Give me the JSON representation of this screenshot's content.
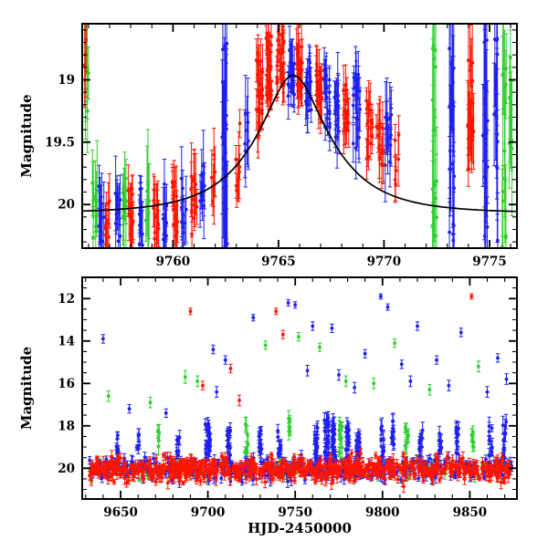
{
  "colors": {
    "red": "#ff1400",
    "green": "#2fce2f",
    "blue": "#1f1ff0",
    "curve": "#000000",
    "axis": "#000000",
    "background": "#ffffff"
  },
  "chart_data": [
    {
      "type": "scatter",
      "panel": "top",
      "title": "",
      "xlabel": "",
      "ylabel": "Magnitude",
      "xlim": [
        9755.7,
        9776.3
      ],
      "ylim": [
        18.55,
        20.35
      ],
      "y_axis_inverted_magnitude": true,
      "xticks": [
        9760,
        9765,
        9770,
        9775
      ],
      "xtick_minor_step": 1,
      "yticks": [
        19,
        19.5,
        20
      ],
      "ytick_minor_step": 0.1,
      "legend": "none",
      "grid": false,
      "model_curve": {
        "name": "microlensing-fit",
        "t0": 9765.7,
        "u0": 0.38,
        "tE": 3.3,
        "baseline_mag": 20.07,
        "peak_mag": 18.96
      },
      "clusters": [
        [
          9755.85,
          0.15,
          "red",
          3,
          18.6,
          19.05,
          0.25
        ],
        [
          9755.95,
          0.2,
          "green",
          6,
          18.7,
          19.5,
          0.3
        ],
        [
          9756.3,
          0.25,
          "green",
          10,
          19.8,
          20.35,
          0.25
        ],
        [
          9756.6,
          0.25,
          "blue",
          12,
          19.85,
          20.3,
          0.2
        ],
        [
          9756.9,
          0.2,
          "red",
          10,
          19.9,
          20.3,
          0.18
        ],
        [
          9757.4,
          0.25,
          "blue",
          12,
          19.8,
          20.3,
          0.2
        ],
        [
          9757.7,
          0.2,
          "green",
          8,
          19.75,
          20.25,
          0.28
        ],
        [
          9758.0,
          0.25,
          "red",
          12,
          19.85,
          20.3,
          0.18
        ],
        [
          9758.5,
          0.25,
          "blue",
          12,
          19.8,
          20.35,
          0.2
        ],
        [
          9758.8,
          0.2,
          "green",
          6,
          19.8,
          20.2,
          0.3
        ],
        [
          9759.2,
          0.25,
          "red",
          12,
          19.85,
          20.3,
          0.18
        ],
        [
          9759.6,
          0.25,
          "blue",
          10,
          19.8,
          20.3,
          0.2
        ],
        [
          9760.1,
          0.3,
          "red",
          14,
          19.8,
          20.3,
          0.18
        ],
        [
          9760.5,
          0.25,
          "blue",
          10,
          19.75,
          20.25,
          0.2
        ],
        [
          9761.0,
          0.3,
          "red",
          12,
          19.7,
          20.25,
          0.18
        ],
        [
          9761.4,
          0.25,
          "blue",
          10,
          19.65,
          20.2,
          0.2
        ],
        [
          9761.9,
          0.2,
          "red",
          8,
          19.6,
          20.1,
          0.18
        ],
        [
          9762.45,
          0.25,
          "blue",
          22,
          18.6,
          20.35,
          0.45
        ],
        [
          9763.1,
          0.25,
          "red",
          8,
          19.35,
          19.9,
          0.2
        ],
        [
          9763.5,
          0.2,
          "blue",
          6,
          19.2,
          19.7,
          0.25
        ],
        [
          9764.1,
          0.3,
          "red",
          25,
          18.75,
          19.5,
          0.15
        ],
        [
          9764.55,
          0.3,
          "red",
          30,
          18.6,
          19.15,
          0.12
        ],
        [
          9765.1,
          0.35,
          "red",
          30,
          18.6,
          19.05,
          0.12
        ],
        [
          9765.6,
          0.3,
          "blue",
          18,
          18.75,
          19.15,
          0.15
        ],
        [
          9766.0,
          0.3,
          "red",
          22,
          18.7,
          19.1,
          0.13
        ],
        [
          9766.45,
          0.3,
          "blue",
          20,
          18.8,
          19.25,
          0.15
        ],
        [
          9766.9,
          0.3,
          "red",
          18,
          18.85,
          19.25,
          0.14
        ],
        [
          9767.3,
          0.3,
          "blue",
          18,
          18.9,
          19.4,
          0.16
        ],
        [
          9767.8,
          0.3,
          "blue",
          16,
          19.0,
          19.5,
          0.18
        ],
        [
          9768.2,
          0.3,
          "red",
          14,
          19.0,
          19.45,
          0.15
        ],
        [
          9768.7,
          0.35,
          "blue",
          18,
          18.95,
          19.55,
          0.18
        ],
        [
          9769.3,
          0.3,
          "red",
          16,
          19.15,
          19.65,
          0.15
        ],
        [
          9769.8,
          0.35,
          "red",
          16,
          19.3,
          19.8,
          0.16
        ],
        [
          9770.2,
          0.3,
          "blue",
          14,
          19.2,
          19.8,
          0.2
        ],
        [
          9770.6,
          0.2,
          "red",
          6,
          19.4,
          19.85,
          0.18
        ],
        [
          9772.4,
          0.2,
          "green",
          16,
          18.6,
          20.35,
          0.5
        ],
        [
          9773.2,
          0.25,
          "blue",
          20,
          18.6,
          20.35,
          0.5
        ],
        [
          9774.1,
          0.3,
          "red",
          20,
          18.8,
          19.7,
          0.25
        ],
        [
          9774.8,
          0.25,
          "blue",
          18,
          18.6,
          20.35,
          0.45
        ],
        [
          9775.3,
          0.2,
          "blue",
          12,
          18.6,
          20.3,
          0.5
        ],
        [
          9775.7,
          0.2,
          "green",
          14,
          18.6,
          20.35,
          0.5
        ],
        [
          9776.0,
          0.15,
          "green",
          8,
          18.7,
          19.6,
          0.4
        ]
      ],
      "outliers": []
    },
    {
      "type": "scatter",
      "panel": "bottom",
      "title": "",
      "xlabel": "HJD-2450000",
      "ylabel": "Magnitude",
      "xlim": [
        9628,
        9877
      ],
      "ylim": [
        11.0,
        21.45
      ],
      "y_axis_inverted_magnitude": true,
      "xticks": [
        9650,
        9700,
        9750,
        9800,
        9850
      ],
      "xtick_minor_step": 10,
      "yticks": [
        12,
        14,
        16,
        18,
        20
      ],
      "ytick_minor_step": 0.5,
      "legend": "none",
      "grid": false,
      "baseline_band": {
        "x0": 9632,
        "x1": 9874,
        "center_mag": 20.05,
        "spread_mag": 0.25,
        "counts": {
          "red": 750,
          "blue": 420,
          "green": 90
        },
        "err_min": 0.08,
        "err_max": 0.3
      },
      "clusters": [
        [
          9648,
          2,
          "blue",
          8,
          18.4,
          19.6,
          0.25
        ],
        [
          9660,
          2,
          "blue",
          6,
          18.3,
          19.4,
          0.25
        ],
        [
          9672,
          2,
          "green",
          5,
          18.2,
          19.2,
          0.3
        ],
        [
          9683,
          2,
          "blue",
          8,
          18.0,
          19.4,
          0.25
        ],
        [
          9700,
          3,
          "blue",
          25,
          17.8,
          19.6,
          0.25
        ],
        [
          9712,
          2,
          "blue",
          15,
          18.2,
          19.6,
          0.25
        ],
        [
          9722,
          2,
          "green",
          8,
          17.9,
          19.3,
          0.3
        ],
        [
          9730,
          2,
          "blue",
          12,
          18.0,
          19.5,
          0.25
        ],
        [
          9741,
          2,
          "blue",
          10,
          18.2,
          19.5,
          0.3
        ],
        [
          9747,
          1.5,
          "green",
          6,
          17.6,
          18.8,
          0.3
        ],
        [
          9762,
          2,
          "blue",
          18,
          17.9,
          19.6,
          0.3
        ],
        [
          9768,
          2.5,
          "blue",
          30,
          17.6,
          19.8,
          0.3
        ],
        [
          9772,
          2,
          "blue",
          25,
          17.8,
          19.8,
          0.3
        ],
        [
          9776,
          2,
          "green",
          10,
          17.8,
          19.4,
          0.3
        ],
        [
          9780,
          2,
          "blue",
          20,
          18.0,
          19.8,
          0.3
        ],
        [
          9786,
          2,
          "blue",
          15,
          18.3,
          19.8,
          0.3
        ],
        [
          9800,
          2,
          "blue",
          12,
          18.0,
          19.5,
          0.3
        ],
        [
          9806,
          2,
          "blue",
          10,
          17.7,
          19.2,
          0.3
        ],
        [
          9814,
          2,
          "green",
          8,
          17.9,
          19.2,
          0.3
        ],
        [
          9822,
          2,
          "blue",
          10,
          18.1,
          19.5,
          0.3
        ],
        [
          9833,
          2,
          "blue",
          8,
          18.3,
          19.6,
          0.3
        ],
        [
          9843,
          2,
          "blue",
          10,
          17.8,
          19.4,
          0.3
        ],
        [
          9852,
          2,
          "green",
          6,
          18.0,
          19.0,
          0.3
        ],
        [
          9862,
          2,
          "blue",
          10,
          17.9,
          19.5,
          0.3
        ],
        [
          9870,
          2,
          "blue",
          12,
          17.7,
          19.6,
          0.3
        ]
      ],
      "outliers": [
        [
          9640,
          13.9,
          "blue",
          0.2
        ],
        [
          9643,
          16.6,
          "green",
          0.25
        ],
        [
          9655,
          17.2,
          "blue",
          0.2
        ],
        [
          9667,
          16.9,
          "green",
          0.25
        ],
        [
          9676,
          17.4,
          "blue",
          0.2
        ],
        [
          9687,
          15.7,
          "green",
          0.3
        ],
        [
          9690,
          12.6,
          "red",
          0.15
        ],
        [
          9694,
          15.9,
          "green",
          0.25
        ],
        [
          9697,
          16.1,
          "red",
          0.2
        ],
        [
          9703,
          14.4,
          "blue",
          0.2
        ],
        [
          9705,
          16.4,
          "blue",
          0.25
        ],
        [
          9710,
          14.9,
          "blue",
          0.2
        ],
        [
          9713,
          15.3,
          "red",
          0.2
        ],
        [
          9718,
          16.8,
          "red",
          0.25
        ],
        [
          9726,
          12.9,
          "blue",
          0.15
        ],
        [
          9733,
          14.2,
          "green",
          0.2
        ],
        [
          9739,
          12.6,
          "red",
          0.15
        ],
        [
          9743,
          13.7,
          "red",
          0.2
        ],
        [
          9746,
          12.2,
          "blue",
          0.15
        ],
        [
          9750,
          12.3,
          "blue",
          0.15
        ],
        [
          9752,
          13.8,
          "green",
          0.2
        ],
        [
          9757,
          15.4,
          "blue",
          0.25
        ],
        [
          9760,
          13.3,
          "blue",
          0.2
        ],
        [
          9764,
          14.3,
          "green",
          0.2
        ],
        [
          9771,
          13.4,
          "blue",
          0.2
        ],
        [
          9775,
          15.6,
          "blue",
          0.25
        ],
        [
          9779,
          15.9,
          "green",
          0.25
        ],
        [
          9784,
          16.2,
          "blue",
          0.25
        ],
        [
          9790,
          14.6,
          "blue",
          0.2
        ],
        [
          9795,
          16.0,
          "green",
          0.25
        ],
        [
          9799,
          11.9,
          "blue",
          0.12
        ],
        [
          9803,
          12.4,
          "blue",
          0.15
        ],
        [
          9807,
          14.1,
          "green",
          0.2
        ],
        [
          9811,
          15.1,
          "blue",
          0.2
        ],
        [
          9816,
          15.9,
          "blue",
          0.25
        ],
        [
          9820,
          13.3,
          "blue",
          0.2
        ],
        [
          9827,
          16.3,
          "green",
          0.25
        ],
        [
          9831,
          14.9,
          "blue",
          0.2
        ],
        [
          9838,
          16.1,
          "blue",
          0.25
        ],
        [
          9845,
          13.6,
          "blue",
          0.2
        ],
        [
          9851,
          11.9,
          "red",
          0.12
        ],
        [
          9855,
          15.2,
          "green",
          0.25
        ],
        [
          9860,
          16.4,
          "blue",
          0.25
        ],
        [
          9866,
          14.8,
          "blue",
          0.2
        ],
        [
          9871,
          15.8,
          "blue",
          0.25
        ]
      ]
    }
  ]
}
